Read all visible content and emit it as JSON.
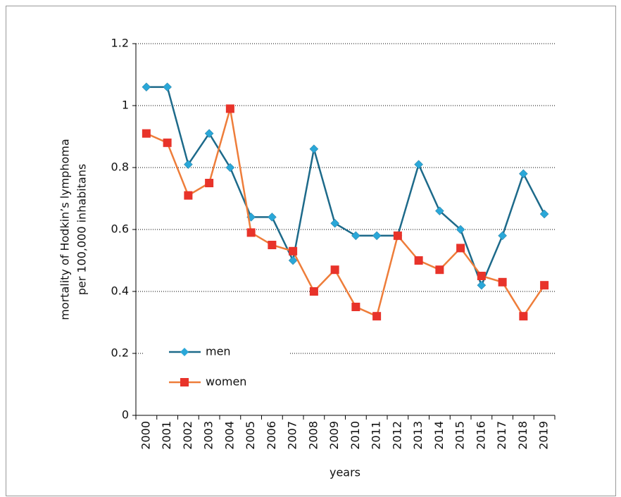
{
  "chart_data": {
    "type": "line",
    "y_label": [
      "mortality of Hodkin’s lymphoma",
      "per 100,000 inhabitans"
    ],
    "x_label": "years",
    "categories": [
      "2000",
      "2001",
      "2002",
      "2003",
      "2004",
      "2005",
      "2006",
      "2007",
      "2008",
      "2009",
      "2010",
      "2011",
      "2012",
      "2013",
      "2014",
      "2015",
      "2016",
      "2017",
      "2018",
      "2019"
    ],
    "series": [
      {
        "name": "men",
        "color": "#1d6a8a",
        "marker_color": "#2aa7d8",
        "marker": "diamond",
        "values": [
          1.06,
          1.06,
          0.81,
          0.91,
          0.8,
          0.64,
          0.64,
          0.5,
          0.86,
          0.62,
          0.58,
          0.58,
          0.58,
          0.81,
          0.66,
          0.6,
          0.42,
          0.58,
          0.78,
          0.65
        ]
      },
      {
        "name": "women",
        "color": "#ee7d3a",
        "marker_color": "#e8332a",
        "marker": "square",
        "values": [
          0.91,
          0.88,
          0.71,
          0.75,
          0.99,
          0.59,
          0.55,
          0.53,
          0.4,
          0.47,
          0.35,
          0.32,
          0.58,
          0.5,
          0.47,
          0.54,
          0.45,
          0.43,
          0.32,
          0.42
        ]
      }
    ],
    "ylim": [
      0,
      1.2
    ],
    "yticks": [
      0,
      0.2,
      0.4,
      0.6,
      0.8,
      1,
      1.2
    ],
    "grid": true,
    "legend": "lower-left"
  }
}
